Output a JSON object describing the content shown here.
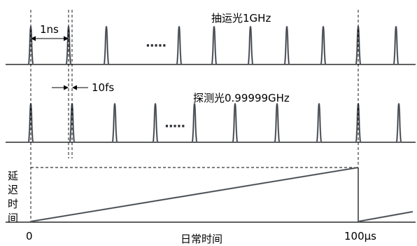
{
  "pump_label": "抽运光1GHz",
  "probe_label": "探测光0.99999GHz",
  "period_label": "1ns",
  "offset_label": "10fs",
  "ellipsis": "·····",
  "y_axis_label": [
    "延",
    "迟",
    "时",
    "间"
  ],
  "x_axis_label": "日常时间",
  "x_tick_0": "0",
  "x_tick_end": "100μs",
  "pump_pulse_count": 11,
  "probe_pulse_count": 11
}
